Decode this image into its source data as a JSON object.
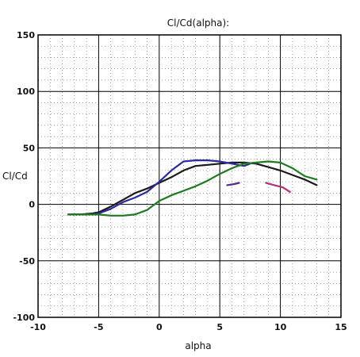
{
  "chart_data": {
    "type": "line",
    "title": "Cl/Cd(alpha):",
    "xlabel": "alpha",
    "ylabel": "Cl/Cd",
    "xlim": [
      -10,
      15
    ],
    "ylim": [
      -100,
      150
    ],
    "xticks": [
      "-10",
      "-5",
      "0",
      "5",
      "10",
      "15"
    ],
    "yticks": [
      "-100",
      "-50",
      "0",
      "50",
      "100",
      "150"
    ],
    "grid": true,
    "minor_grid": "dotted",
    "series": [
      {
        "color": "#1a1a1a",
        "x": [
          -7.5,
          -6.5,
          -5.5,
          -5,
          -4,
          -3,
          -2,
          -1,
          0,
          1,
          2,
          3,
          4,
          5,
          6,
          7,
          8,
          9,
          10,
          11,
          12,
          13
        ],
        "y": [
          -9,
          -9,
          -8,
          -7,
          -2,
          4,
          10,
          14,
          19,
          24,
          30,
          34,
          35,
          36,
          37,
          37,
          36,
          33,
          30,
          26,
          22,
          17
        ]
      },
      {
        "color": "#2b2b9e",
        "x": [
          -7.5,
          -6.5,
          -5.5,
          -5,
          -4,
          -3,
          -2,
          -1,
          0,
          1,
          2,
          3,
          4,
          5,
          6,
          7,
          7.5
        ],
        "y": [
          -9,
          -9,
          -9,
          -8,
          -4,
          2,
          6,
          11,
          20,
          30,
          38,
          39,
          39,
          38,
          36,
          34,
          36
        ]
      },
      {
        "color": "#1f7a1f",
        "x": [
          -7.5,
          -6,
          -5,
          -4,
          -3,
          -2,
          -1,
          0,
          1,
          2,
          3,
          4,
          5,
          6,
          7,
          8,
          9,
          10,
          11,
          12,
          13
        ],
        "y": [
          -9,
          -9,
          -9,
          -10,
          -10,
          -9,
          -5,
          3,
          8,
          12,
          16,
          21,
          27,
          32,
          36,
          37,
          38,
          37,
          32,
          25,
          22
        ]
      },
      {
        "color": "#5a2b8c",
        "x": [
          5.6,
          6.2,
          6.6
        ],
        "y": [
          17,
          18,
          19
        ]
      },
      {
        "color": "#b0307a",
        "x": [
          8.8,
          9.5,
          10.2,
          10.8
        ],
        "y": [
          19,
          17,
          15,
          11
        ]
      }
    ]
  }
}
